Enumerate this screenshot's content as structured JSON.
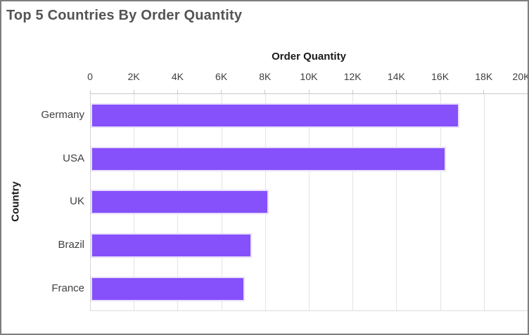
{
  "widget": {
    "title": "Top 5 Countries By Order Quantity"
  },
  "chart_data": {
    "type": "bar",
    "orientation": "horizontal",
    "title": "Top 5 Countries By Order Quantity",
    "xlabel": "Order Quantity",
    "ylabel": "Country",
    "categories": [
      "Germany",
      "USA",
      "UK",
      "Brazil",
      "France"
    ],
    "values": [
      16850,
      16250,
      8150,
      7350,
      7050
    ],
    "xlim": [
      0,
      20000
    ],
    "xticks": [
      0,
      2000,
      4000,
      6000,
      8000,
      10000,
      12000,
      14000,
      16000,
      18000,
      20000
    ],
    "xtick_labels": [
      "0",
      "2K",
      "4K",
      "6K",
      "8K",
      "10K",
      "12K",
      "14K",
      "16K",
      "18K",
      "20K"
    ],
    "grid": "vertical-on",
    "legend": "none",
    "colors": {
      "bar_fill": "#8650fb",
      "bar_border": "#e7defc",
      "gridline": "#e3e3e3",
      "axis_line": "#c9c9c9",
      "title_text": "#545454",
      "axis_title_text": "#1a1a1a",
      "tick_text": "#3f3f3f"
    }
  }
}
